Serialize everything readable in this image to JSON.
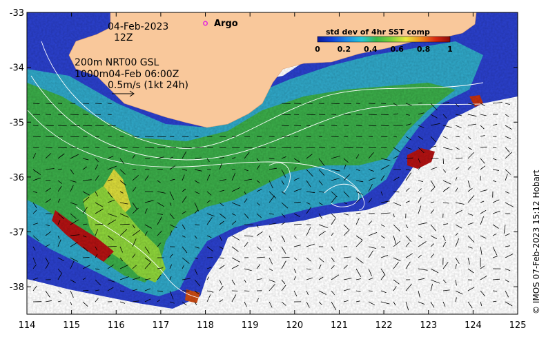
{
  "map": {
    "date": "04-Feb-2023",
    "hour": "12Z",
    "argo_label": "Argo",
    "contour_line_1": "200m  NRT00 GSL",
    "contour_line_2": "1000m04-Feb 06:00Z",
    "velocity_scale": "0.5m/s (1kt 24h)",
    "credit": "© IMOS 07-Feb-2023 15:12 Hobart",
    "longitude_range": [
      114,
      125
    ],
    "latitude_range": [
      -38.5,
      -33
    ],
    "longitude_ticks": [
      "114",
      "115",
      "116",
      "117",
      "118",
      "119",
      "120",
      "121",
      "122",
      "123",
      "124",
      "125"
    ],
    "latitude_ticks": [
      "-33",
      "-34",
      "-35",
      "-36",
      "-37",
      "-38"
    ],
    "argo_floats": [
      {
        "lon": 118.0,
        "lat": -33.2
      }
    ],
    "colors": {
      "land": "#f9c89b",
      "argo_marker": "#e020e0",
      "ocean_low": "#1a3fbf",
      "ocean_mid": "#2ba3c7",
      "ocean_high": "#3aa83a",
      "hotspot": "#b01010"
    }
  },
  "colorbar": {
    "title": "std dev of 4hr SST comp",
    "ticks": [
      "0",
      "0.2",
      "0.4",
      "0.6",
      "0.8",
      "1"
    ],
    "range": [
      0,
      1
    ],
    "colormap": [
      "#0b1a9a",
      "#1040d8",
      "#1a8ae8",
      "#25c8d8",
      "#3ab84a",
      "#7cd23a",
      "#e8e83a",
      "#f09020",
      "#d82a10",
      "#8a0a0a"
    ]
  }
}
